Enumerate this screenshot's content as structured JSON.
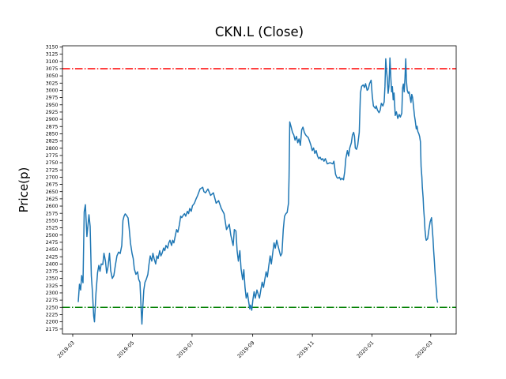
{
  "figure": {
    "title": "CKN.L (Close)",
    "ylabel": "Price(p)"
  },
  "colors": {
    "background": "#ffffff",
    "axes": "#000000",
    "series": "#1f77b4",
    "upper_line": "#ff0000",
    "lower_line": "#008000"
  },
  "chart_data": {
    "type": "line",
    "title": "CKN.L (Close)",
    "xlabel": "",
    "ylabel": "Price(p)",
    "x_unit": "days since 2019-03-01 (x axis shows months)",
    "xlim_days": [
      -10.5,
      392
    ],
    "ylim": [
      2158,
      3154
    ],
    "grid": false,
    "legend": "none",
    "y_axis": {
      "first": 2175,
      "last": 3150,
      "step": 25
    },
    "x_ticks": [
      {
        "label": "2019-03",
        "day": 0
      },
      {
        "label": "2019-05",
        "day": 61
      },
      {
        "label": "2019-07",
        "day": 122
      },
      {
        "label": "2019-09",
        "day": 184
      },
      {
        "label": "2019-11",
        "day": 245
      },
      {
        "label": "2020-01",
        "day": 306
      },
      {
        "label": "2020-03",
        "day": 366
      }
    ],
    "hlines": [
      {
        "name": "upper-threshold-line",
        "value": 3075,
        "color": "#ff0000",
        "style": "dashdot"
      },
      {
        "name": "lower-threshold-line",
        "value": 2250,
        "color": "#008000",
        "style": "dashdot"
      }
    ],
    "series": [
      {
        "name": "Close",
        "color": "#1f77b4",
        "points": [
          [
            5.7,
            2270
          ],
          [
            6.9,
            2330
          ],
          [
            8.1,
            2310
          ],
          [
            9.1,
            2360
          ],
          [
            10.5,
            2335
          ],
          [
            11.7,
            2580
          ],
          [
            12.9,
            2605
          ],
          [
            14.5,
            2495
          ],
          [
            16.6,
            2570
          ],
          [
            17.8,
            2530
          ],
          [
            19,
            2360
          ],
          [
            20.2,
            2300
          ],
          [
            21.4,
            2220
          ],
          [
            22.2,
            2200
          ],
          [
            23.8,
            2300
          ],
          [
            25.4,
            2370
          ],
          [
            26.7,
            2395
          ],
          [
            27.9,
            2375
          ],
          [
            29.1,
            2400
          ],
          [
            30.7,
            2398
          ],
          [
            31.9,
            2437
          ],
          [
            33.5,
            2410
          ],
          [
            34.7,
            2368
          ],
          [
            36,
            2388
          ],
          [
            37.6,
            2437
          ],
          [
            38.8,
            2377
          ],
          [
            40.4,
            2350
          ],
          [
            42,
            2360
          ],
          [
            43.6,
            2395
          ],
          [
            45.2,
            2428
          ],
          [
            46.9,
            2441
          ],
          [
            48.5,
            2436
          ],
          [
            50.1,
            2463
          ],
          [
            51.3,
            2550
          ],
          [
            52.5,
            2565
          ],
          [
            53.7,
            2573
          ],
          [
            54.9,
            2568
          ],
          [
            56.6,
            2559
          ],
          [
            57.8,
            2520
          ],
          [
            59,
            2473
          ],
          [
            60.6,
            2437
          ],
          [
            61.8,
            2419
          ],
          [
            63,
            2383
          ],
          [
            64.6,
            2364
          ],
          [
            66.3,
            2373
          ],
          [
            67.5,
            2346
          ],
          [
            68.7,
            2337
          ],
          [
            69.9,
            2246
          ],
          [
            70.7,
            2192
          ],
          [
            71.5,
            2246
          ],
          [
            72.7,
            2310
          ],
          [
            73.9,
            2337
          ],
          [
            75.1,
            2346
          ],
          [
            76.8,
            2364
          ],
          [
            78,
            2400
          ],
          [
            79.2,
            2428
          ],
          [
            80.8,
            2410
          ],
          [
            82,
            2437
          ],
          [
            83.2,
            2419
          ],
          [
            84.8,
            2400
          ],
          [
            86,
            2428
          ],
          [
            87.3,
            2419
          ],
          [
            88.9,
            2446
          ],
          [
            90.1,
            2428
          ],
          [
            91.3,
            2437
          ],
          [
            92.9,
            2455
          ],
          [
            94.1,
            2446
          ],
          [
            95.3,
            2464
          ],
          [
            97,
            2455
          ],
          [
            98.2,
            2473
          ],
          [
            99.4,
            2482
          ],
          [
            101,
            2464
          ],
          [
            102.2,
            2482
          ],
          [
            103.4,
            2473
          ],
          [
            105,
            2500
          ],
          [
            106.2,
            2519
          ],
          [
            107.5,
            2510
          ],
          [
            109.1,
            2537
          ],
          [
            110.3,
            2565
          ],
          [
            111.5,
            2560
          ],
          [
            113.1,
            2569
          ],
          [
            114.3,
            2574
          ],
          [
            115.5,
            2565
          ],
          [
            117.2,
            2582
          ],
          [
            118.4,
            2574
          ],
          [
            119.6,
            2592
          ],
          [
            121.2,
            2582
          ],
          [
            122.4,
            2601
          ],
          [
            124.4,
            2610
          ],
          [
            126.1,
            2625
          ],
          [
            127.7,
            2637
          ],
          [
            130.1,
            2659
          ],
          [
            132.9,
            2665
          ],
          [
            134.1,
            2650
          ],
          [
            135.7,
            2646
          ],
          [
            138.2,
            2659
          ],
          [
            141,
            2637
          ],
          [
            143.8,
            2646
          ],
          [
            146.6,
            2610
          ],
          [
            149.1,
            2619
          ],
          [
            151.9,
            2592
          ],
          [
            154.7,
            2574
          ],
          [
            157.2,
            2519
          ],
          [
            160,
            2537
          ],
          [
            161.6,
            2500
          ],
          [
            164,
            2464
          ],
          [
            165.2,
            2519
          ],
          [
            166.8,
            2514
          ],
          [
            168,
            2446
          ],
          [
            169.3,
            2410
          ],
          [
            170.9,
            2446
          ],
          [
            172.1,
            2383
          ],
          [
            173.7,
            2346
          ],
          [
            174.9,
            2380
          ],
          [
            176.1,
            2319
          ],
          [
            177.3,
            2282
          ],
          [
            178.6,
            2300
          ],
          [
            179.8,
            2270
          ],
          [
            181,
            2245
          ],
          [
            181.8,
            2258
          ],
          [
            183,
            2240
          ],
          [
            184.2,
            2277
          ],
          [
            185.4,
            2304
          ],
          [
            186.6,
            2282
          ],
          [
            188.3,
            2310
          ],
          [
            189.6,
            2295
          ],
          [
            190.9,
            2282
          ],
          [
            192.3,
            2310
          ],
          [
            193.7,
            2337
          ],
          [
            195,
            2319
          ],
          [
            196.3,
            2346
          ],
          [
            197.7,
            2373
          ],
          [
            199,
            2355
          ],
          [
            200.4,
            2392
          ],
          [
            201.8,
            2428
          ],
          [
            203,
            2400
          ],
          [
            204.4,
            2437
          ],
          [
            205.8,
            2473
          ],
          [
            207.1,
            2455
          ],
          [
            208.5,
            2482
          ],
          [
            209.8,
            2464
          ],
          [
            211.1,
            2446
          ],
          [
            212.5,
            2428
          ],
          [
            213.9,
            2437
          ],
          [
            215.2,
            2519
          ],
          [
            216.5,
            2565
          ],
          [
            217.9,
            2574
          ],
          [
            219.2,
            2578
          ],
          [
            220.6,
            2610
          ],
          [
            221.1,
            2700
          ],
          [
            221.9,
            2891
          ],
          [
            223.3,
            2873
          ],
          [
            224.6,
            2855
          ],
          [
            226,
            2846
          ],
          [
            227.3,
            2828
          ],
          [
            228.7,
            2841
          ],
          [
            230,
            2819
          ],
          [
            231.3,
            2832
          ],
          [
            232.7,
            2810
          ],
          [
            234.1,
            2864
          ],
          [
            235.4,
            2873
          ],
          [
            236.7,
            2855
          ],
          [
            238.1,
            2846
          ],
          [
            239.4,
            2841
          ],
          [
            240.8,
            2837
          ],
          [
            242.2,
            2823
          ],
          [
            243.5,
            2810
          ],
          [
            244.8,
            2792
          ],
          [
            246.2,
            2801
          ],
          [
            247.5,
            2782
          ],
          [
            248.9,
            2792
          ],
          [
            250.2,
            2773
          ],
          [
            251.5,
            2764
          ],
          [
            252.9,
            2769
          ],
          [
            254.3,
            2760
          ],
          [
            255.6,
            2764
          ],
          [
            256.9,
            2755
          ],
          [
            258.2,
            2764
          ],
          [
            260.2,
            2746
          ],
          [
            263,
            2750
          ],
          [
            265.8,
            2746
          ],
          [
            267,
            2755
          ],
          [
            268.7,
            2710
          ],
          [
            269.9,
            2700
          ],
          [
            271.1,
            2696
          ],
          [
            272.7,
            2700
          ],
          [
            273.9,
            2691
          ],
          [
            275.1,
            2696
          ],
          [
            276.8,
            2691
          ],
          [
            278,
            2719
          ],
          [
            279.2,
            2764
          ],
          [
            280.8,
            2792
          ],
          [
            282,
            2773
          ],
          [
            283.2,
            2801
          ],
          [
            284.8,
            2819
          ],
          [
            286,
            2846
          ],
          [
            287.2,
            2855
          ],
          [
            288.1,
            2841
          ],
          [
            288.9,
            2801
          ],
          [
            290.1,
            2796
          ],
          [
            291.3,
            2810
          ],
          [
            292.9,
            2855
          ],
          [
            294.1,
            2991
          ],
          [
            295.3,
            3014
          ],
          [
            297,
            3019
          ],
          [
            298.2,
            3010
          ],
          [
            299.4,
            3023
          ],
          [
            301,
            3000
          ],
          [
            302.2,
            3005
          ],
          [
            303.4,
            3023
          ],
          [
            305,
            3035
          ],
          [
            306.2,
            2982
          ],
          [
            307.4,
            2946
          ],
          [
            308.6,
            2941
          ],
          [
            309.4,
            2937
          ],
          [
            310.3,
            2946
          ],
          [
            311.5,
            2932
          ],
          [
            313.1,
            2923
          ],
          [
            314.3,
            2932
          ],
          [
            315.5,
            2955
          ],
          [
            317.1,
            2946
          ],
          [
            318.4,
            2960
          ],
          [
            319.2,
            3013
          ],
          [
            320,
            3109
          ],
          [
            320.8,
            3068
          ],
          [
            321.6,
            3040
          ],
          [
            322.4,
            2990
          ],
          [
            323.2,
            3013
          ],
          [
            324.3,
            3112
          ],
          [
            325.2,
            3040
          ],
          [
            326,
            2995
          ],
          [
            326.8,
            3013
          ],
          [
            327.6,
            2967
          ],
          [
            328.5,
            2991
          ],
          [
            329.7,
            2913
          ],
          [
            330.9,
            2926
          ],
          [
            332.3,
            2903
          ],
          [
            333.7,
            2917
          ],
          [
            334.9,
            2908
          ],
          [
            336.4,
            2921
          ],
          [
            337.2,
            3008
          ],
          [
            338,
            3022
          ],
          [
            338.8,
            2995
          ],
          [
            339.6,
            3040
          ],
          [
            340.4,
            3109
          ],
          [
            341.2,
            3031
          ],
          [
            342,
            3000
          ],
          [
            343,
            2990
          ],
          [
            343.8,
            2995
          ],
          [
            344.6,
            2981
          ],
          [
            345.8,
            2958
          ],
          [
            346.6,
            2986
          ],
          [
            347.4,
            2976
          ],
          [
            348.5,
            2940
          ],
          [
            349.3,
            2913
          ],
          [
            350.1,
            2895
          ],
          [
            351.2,
            2867
          ],
          [
            352,
            2876
          ],
          [
            352.8,
            2858
          ],
          [
            353.9,
            2849
          ],
          [
            354.7,
            2840
          ],
          [
            355.5,
            2822
          ],
          [
            356.1,
            2737
          ],
          [
            356.9,
            2700
          ],
          [
            357.4,
            2664
          ],
          [
            358.2,
            2628
          ],
          [
            358.7,
            2592
          ],
          [
            359.5,
            2555
          ],
          [
            360.1,
            2519
          ],
          [
            360.9,
            2491
          ],
          [
            361.4,
            2482
          ],
          [
            362.8,
            2487
          ],
          [
            364.1,
            2519
          ],
          [
            365.4,
            2546
          ],
          [
            366.8,
            2560
          ],
          [
            367.6,
            2519
          ],
          [
            368.2,
            2491
          ],
          [
            369,
            2446
          ],
          [
            369.7,
            2410
          ],
          [
            370.3,
            2373
          ],
          [
            370.9,
            2346
          ],
          [
            371.7,
            2310
          ],
          [
            372.2,
            2282
          ],
          [
            373,
            2268
          ]
        ]
      }
    ]
  }
}
